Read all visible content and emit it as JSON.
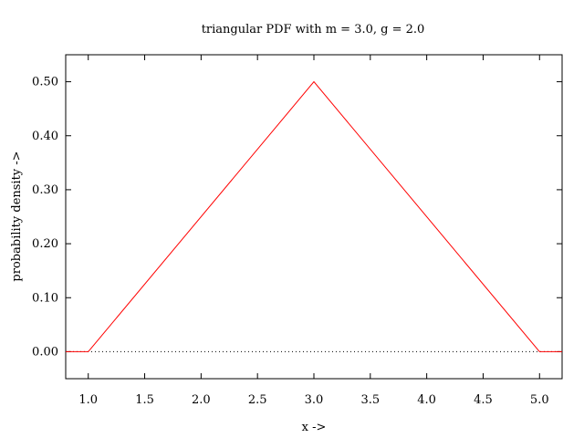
{
  "chart_data": {
    "type": "line",
    "title": "triangular PDF with m = 3.0, g = 2.0",
    "xlabel": "x ->",
    "ylabel": "probability density ->",
    "xlim": [
      0.8,
      5.2
    ],
    "ylim": [
      -0.05,
      0.55
    ],
    "xticks": [
      1.0,
      1.5,
      2.0,
      2.5,
      3.0,
      3.5,
      4.0,
      4.5,
      5.0
    ],
    "xtick_labels": [
      "1.0",
      "1.5",
      "2.0",
      "2.5",
      "3.0",
      "3.5",
      "4.0",
      "4.5",
      "5.0"
    ],
    "yticks": [
      0.0,
      0.1,
      0.2,
      0.3,
      0.4,
      0.5
    ],
    "ytick_labels": [
      "0.00",
      "0.10",
      "0.20",
      "0.30",
      "0.40",
      "0.50"
    ],
    "grid": false,
    "zero_line": {
      "y": 0.0,
      "style": "dotted",
      "color": "#000000"
    },
    "series": [
      {
        "color": "#ff0000",
        "points": [
          [
            0.8,
            0.0
          ],
          [
            1.0,
            0.0
          ],
          [
            3.0,
            0.5
          ],
          [
            5.0,
            0.0
          ],
          [
            5.2,
            0.0
          ]
        ]
      }
    ]
  }
}
